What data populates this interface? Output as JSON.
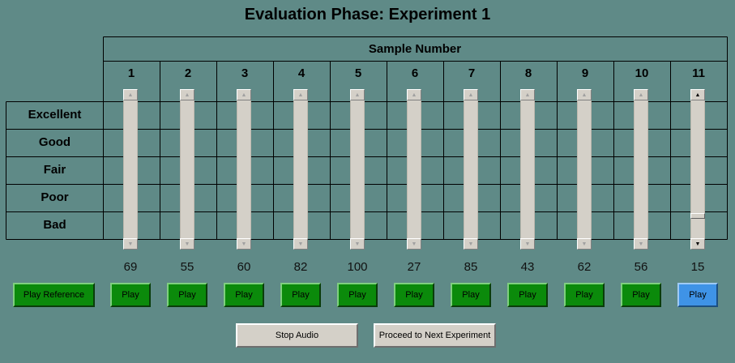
{
  "title": "Evaluation Phase: Experiment 1",
  "header_label": "Sample Number",
  "rating_labels": [
    "Excellent",
    "Good",
    "Fair",
    "Poor",
    "Bad"
  ],
  "samples": [
    {
      "number": "1",
      "value": 69
    },
    {
      "number": "2",
      "value": 55
    },
    {
      "number": "3",
      "value": 60
    },
    {
      "number": "4",
      "value": 82
    },
    {
      "number": "5",
      "value": 100
    },
    {
      "number": "6",
      "value": 27
    },
    {
      "number": "7",
      "value": 85
    },
    {
      "number": "8",
      "value": 43
    },
    {
      "number": "9",
      "value": 62
    },
    {
      "number": "10",
      "value": 56
    },
    {
      "number": "11",
      "value": 15
    }
  ],
  "active_sample_index": 10,
  "play_label": "Play",
  "play_reference_label": "Play Reference",
  "stop_audio_label": "Stop Audio",
  "next_experiment_label": "Proceed to Next Experiment",
  "colors": {
    "background": "#5f8a87",
    "play_button": "#0b8a0b",
    "play_button_active": "#3f93e6",
    "gray_button": "#d4d0c8"
  }
}
